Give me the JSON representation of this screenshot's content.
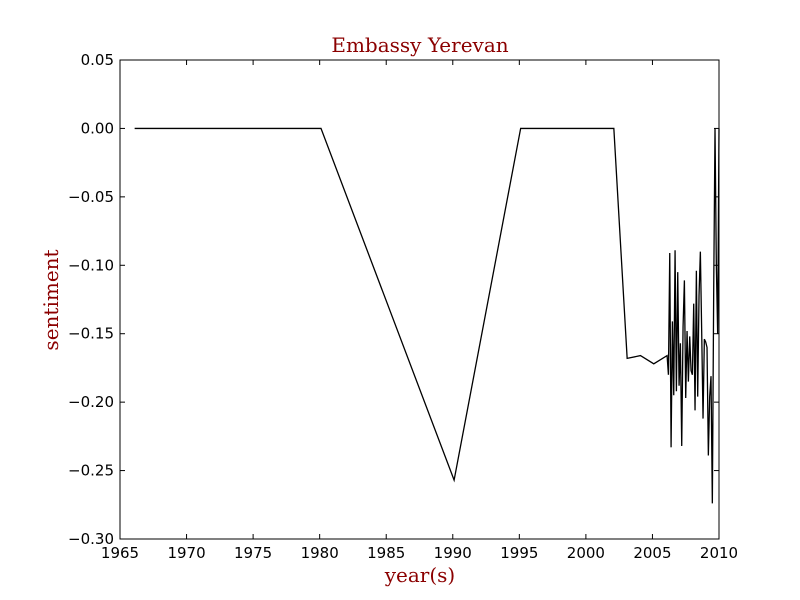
{
  "chart_data": {
    "type": "line",
    "title": "Embassy Yerevan",
    "xlabel": "year(s)",
    "ylabel": "sentiment",
    "xlim": [
      1965,
      2010
    ],
    "ylim": [
      -0.3,
      0.05
    ],
    "xticks": [
      "1965",
      "1970",
      "1975",
      "1980",
      "1985",
      "1990",
      "1995",
      "2000",
      "2005",
      "2010"
    ],
    "xtick_values": [
      1965,
      1970,
      1975,
      1980,
      1985,
      1990,
      1995,
      2000,
      2005,
      2010
    ],
    "yticks": [
      "0.05",
      "0.00",
      "−0.05",
      "−0.10",
      "−0.15",
      "−0.20",
      "−0.25",
      "−0.30"
    ],
    "ytick_values": [
      0.05,
      0.0,
      -0.05,
      -0.1,
      -0.15,
      -0.2,
      -0.25,
      -0.3
    ],
    "grid": false,
    "colors": {
      "title": "#8b0000",
      "line": "#000000",
      "axes": "#000000"
    },
    "series": [
      {
        "name": "sentiment",
        "x": [
          1966.1,
          1980.1,
          1990.1,
          1995.1,
          2002.1,
          2003.1,
          2004.1,
          2005.1,
          2006.1,
          2006.2,
          2006.3,
          2006.4,
          2006.5,
          2006.6,
          2006.7,
          2006.8,
          2006.9,
          2007.0,
          2007.1,
          2007.2,
          2007.3,
          2007.4,
          2007.5,
          2007.6,
          2007.7,
          2007.8,
          2007.9,
          2008.0,
          2008.1,
          2008.2,
          2008.3,
          2008.4,
          2008.5,
          2008.6,
          2008.7,
          2008.8,
          2008.9,
          2009.0,
          2009.1,
          2009.2,
          2009.3,
          2009.4,
          2009.5,
          2009.6,
          2009.7,
          2009.8,
          2009.9,
          2010.0
        ],
        "y": [
          0.0,
          0.0,
          -0.257,
          0.0,
          0.0,
          -0.168,
          -0.166,
          -0.172,
          -0.166,
          -0.18,
          -0.091,
          -0.233,
          -0.141,
          -0.195,
          -0.089,
          -0.192,
          -0.105,
          -0.188,
          -0.157,
          -0.232,
          -0.145,
          -0.111,
          -0.197,
          -0.148,
          -0.185,
          -0.152,
          -0.177,
          -0.18,
          -0.128,
          -0.206,
          -0.104,
          -0.196,
          -0.122,
          -0.09,
          -0.149,
          -0.212,
          -0.154,
          -0.156,
          -0.16,
          -0.239,
          -0.196,
          -0.181,
          -0.274,
          -0.12,
          0.0,
          -0.1,
          -0.15,
          0.0
        ]
      }
    ]
  }
}
